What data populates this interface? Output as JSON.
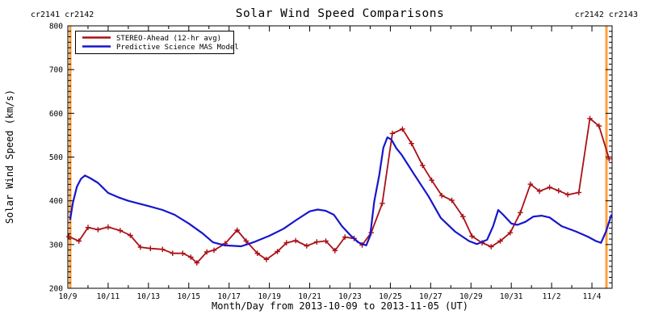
{
  "chart_data": {
    "type": "line",
    "title": "Solar Wind Speed Comparisons",
    "xlabel": "Month/Day from 2013-10-09 to 2013-11-05 (UT)",
    "ylabel": "Solar Wind Speed (km/s)",
    "ylim": [
      200,
      800
    ],
    "xlim_days": [
      0,
      27
    ],
    "grid": false,
    "y_tick_labels": [
      "200",
      "300",
      "400",
      "500",
      "600",
      "700",
      "800"
    ],
    "y_major_step": 100,
    "y_minor_step": 12.5,
    "x_tick_labels": [
      "10/9",
      "10/11",
      "10/13",
      "10/15",
      "10/17",
      "10/19",
      "10/21",
      "10/23",
      "10/25",
      "10/27",
      "10/29",
      "10/31",
      "11/2",
      "11/4"
    ],
    "x_major_step_days": 2,
    "x_minor_step_days": 1,
    "legend_position": "top-left-inside",
    "carrington_lines": {
      "color": "#ffa03c",
      "x_days": [
        0.12,
        26.72
      ],
      "left_label": "cr2141 cr2142",
      "right_label": "cr2142 cr2143"
    },
    "series": [
      {
        "name": "STEREO-Ahead (12-hr avg)",
        "color": "#aa1016",
        "marker": "plus",
        "points": [
          [
            0.05,
            318
          ],
          [
            0.55,
            308
          ],
          [
            1.0,
            339
          ],
          [
            1.5,
            334
          ],
          [
            2.0,
            340
          ],
          [
            2.6,
            332
          ],
          [
            3.1,
            321
          ],
          [
            3.6,
            294
          ],
          [
            4.1,
            291
          ],
          [
            4.7,
            289
          ],
          [
            5.2,
            280
          ],
          [
            5.7,
            280
          ],
          [
            6.1,
            271
          ],
          [
            6.4,
            258
          ],
          [
            6.9,
            283
          ],
          [
            7.25,
            287
          ],
          [
            7.8,
            302
          ],
          [
            8.4,
            333
          ],
          [
            8.85,
            308
          ],
          [
            9.4,
            280
          ],
          [
            9.85,
            266
          ],
          [
            10.4,
            284
          ],
          [
            10.85,
            304
          ],
          [
            11.3,
            309
          ],
          [
            11.85,
            297
          ],
          [
            12.35,
            306
          ],
          [
            12.8,
            308
          ],
          [
            13.25,
            286
          ],
          [
            13.75,
            317
          ],
          [
            14.2,
            314
          ],
          [
            14.6,
            299
          ],
          [
            15.05,
            327
          ],
          [
            15.6,
            394
          ],
          [
            16.1,
            554
          ],
          [
            16.6,
            564
          ],
          [
            17.05,
            531
          ],
          [
            17.6,
            481
          ],
          [
            18.05,
            447
          ],
          [
            18.55,
            412
          ],
          [
            19.05,
            401
          ],
          [
            19.6,
            364
          ],
          [
            20.05,
            319
          ],
          [
            20.55,
            304
          ],
          [
            21.0,
            295
          ],
          [
            21.45,
            308
          ],
          [
            21.95,
            327
          ],
          [
            22.45,
            373
          ],
          [
            22.95,
            438
          ],
          [
            23.4,
            422
          ],
          [
            23.9,
            431
          ],
          [
            24.35,
            423
          ],
          [
            24.8,
            414
          ],
          [
            25.35,
            419
          ],
          [
            25.9,
            588
          ],
          [
            26.35,
            571
          ],
          [
            26.85,
            496
          ]
        ]
      },
      {
        "name": "Predictive Science MAS Model",
        "color": "#1616cd",
        "marker": "none",
        "points": [
          [
            0.12,
            358
          ],
          [
            0.25,
            395
          ],
          [
            0.45,
            432
          ],
          [
            0.65,
            450
          ],
          [
            0.85,
            458
          ],
          [
            1.1,
            452
          ],
          [
            1.5,
            441
          ],
          [
            2.0,
            418
          ],
          [
            2.5,
            408
          ],
          [
            3.0,
            400
          ],
          [
            3.5,
            394
          ],
          [
            4.0,
            388
          ],
          [
            4.7,
            379
          ],
          [
            5.3,
            368
          ],
          [
            6.0,
            348
          ],
          [
            6.7,
            325
          ],
          [
            7.2,
            305
          ],
          [
            7.8,
            298
          ],
          [
            8.6,
            296
          ],
          [
            9.2,
            305
          ],
          [
            10.0,
            320
          ],
          [
            10.7,
            336
          ],
          [
            11.3,
            355
          ],
          [
            12.0,
            376
          ],
          [
            12.4,
            380
          ],
          [
            12.8,
            377
          ],
          [
            13.2,
            368
          ],
          [
            13.6,
            342
          ],
          [
            14.0,
            322
          ],
          [
            14.4,
            305
          ],
          [
            14.8,
            298
          ],
          [
            15.0,
            320
          ],
          [
            15.2,
            398
          ],
          [
            15.45,
            459
          ],
          [
            15.65,
            521
          ],
          [
            15.85,
            545
          ],
          [
            16.05,
            540
          ],
          [
            16.3,
            520
          ],
          [
            16.55,
            506
          ],
          [
            17.2,
            459
          ],
          [
            17.9,
            410
          ],
          [
            18.5,
            361
          ],
          [
            19.2,
            330
          ],
          [
            19.9,
            308
          ],
          [
            20.3,
            301
          ],
          [
            20.8,
            311
          ],
          [
            21.1,
            342
          ],
          [
            21.35,
            379
          ],
          [
            21.6,
            368
          ],
          [
            22.0,
            348
          ],
          [
            22.3,
            345
          ],
          [
            22.7,
            352
          ],
          [
            23.1,
            364
          ],
          [
            23.5,
            366
          ],
          [
            23.9,
            362
          ],
          [
            24.5,
            342
          ],
          [
            25.2,
            330
          ],
          [
            25.8,
            318
          ],
          [
            26.2,
            308
          ],
          [
            26.45,
            304
          ],
          [
            26.7,
            330
          ],
          [
            26.96,
            367
          ]
        ]
      }
    ]
  }
}
